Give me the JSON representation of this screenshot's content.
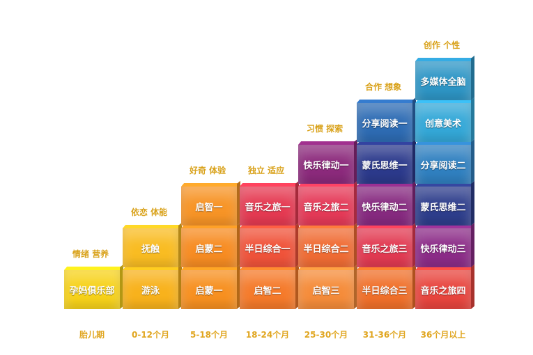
{
  "stage_labels": [
    "情绪 营养",
    "依恋 体能",
    "好奇 体验",
    "独立 适应",
    "习惯 探索",
    "合作 想象",
    "创作 个性"
  ],
  "age_labels": [
    "胎儿期",
    "0-12个月",
    "5-18个月",
    "18-24个月",
    "25-30个月",
    "31-36个月",
    "36个月以上"
  ],
  "columns": [
    [
      {
        "label": "孕妈俱乐部",
        "color": "#f7d21a"
      }
    ],
    [
      {
        "label": "游泳",
        "color": "#f8b21c"
      },
      {
        "label": "抚触",
        "color": "#f9bc22"
      }
    ],
    [
      {
        "label": "启蒙一",
        "color": "#f79020"
      },
      {
        "label": "启蒙二",
        "color": "#f78c22"
      },
      {
        "label": "启智一",
        "color": "#f79426"
      }
    ],
    [
      {
        "label": "启智二",
        "color": "#f57a2a"
      },
      {
        "label": "半日综合一",
        "color": "#f0533a"
      },
      {
        "label": "音乐之旅一",
        "color": "#e53a52"
      }
    ],
    [
      {
        "label": "启智三",
        "color": "#f58c3a"
      },
      {
        "label": "半日综合二",
        "color": "#f06c34"
      },
      {
        "label": "音乐之旅二",
        "color": "#e53a58"
      },
      {
        "label": "快乐律动一",
        "color": "#8c2a7c"
      }
    ],
    [
      {
        "label": "半日综合三",
        "color": "#f0702a"
      },
      {
        "label": "音乐之旅三",
        "color": "#e23a52"
      },
      {
        "label": "快乐律动二",
        "color": "#872a80"
      },
      {
        "label": "蒙氏思维一",
        "color": "#2c3a8c"
      },
      {
        "label": "分享阅读一",
        "color": "#2e6cb4"
      }
    ],
    [
      {
        "label": "音乐之旅四",
        "color": "#e8453e"
      },
      {
        "label": "快乐律动三",
        "color": "#8c2c88"
      },
      {
        "label": "蒙氏思维二",
        "color": "#2e3e8c"
      },
      {
        "label": "分享阅读二",
        "color": "#3080c0"
      },
      {
        "label": "创意美术",
        "color": "#34a8d8"
      },
      {
        "label": "多媒体全脑",
        "color": "#2e96c6"
      }
    ]
  ]
}
